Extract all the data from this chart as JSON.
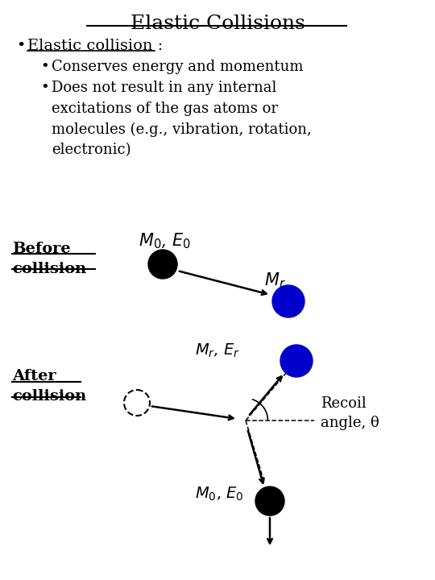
{
  "title": "Elastic Collisions",
  "title_fontsize": 18,
  "bg_color": "#ffffff",
  "text_color": "#000000",
  "bullet1_sub1": "Conserves energy and momentum",
  "bullet1_sub2": "Does not result in any internal\nexcitations of the gas atoms or\nmolecules (e.g., vibration, rotation,\nelectronic)",
  "before_label": "Before\ncollision",
  "after_label": "After\ncollision",
  "m0_label_before": "$M_0$, $E_0$",
  "mr_label_before": "$M_r$",
  "mr_er_label": "$M_r$, $E_r$",
  "m0_e0_label_after": "$M_0$, $E_0$",
  "recoil_label": "Recoil\nangle, θ",
  "black_color": "#000000",
  "blue_color": "#0000cc"
}
